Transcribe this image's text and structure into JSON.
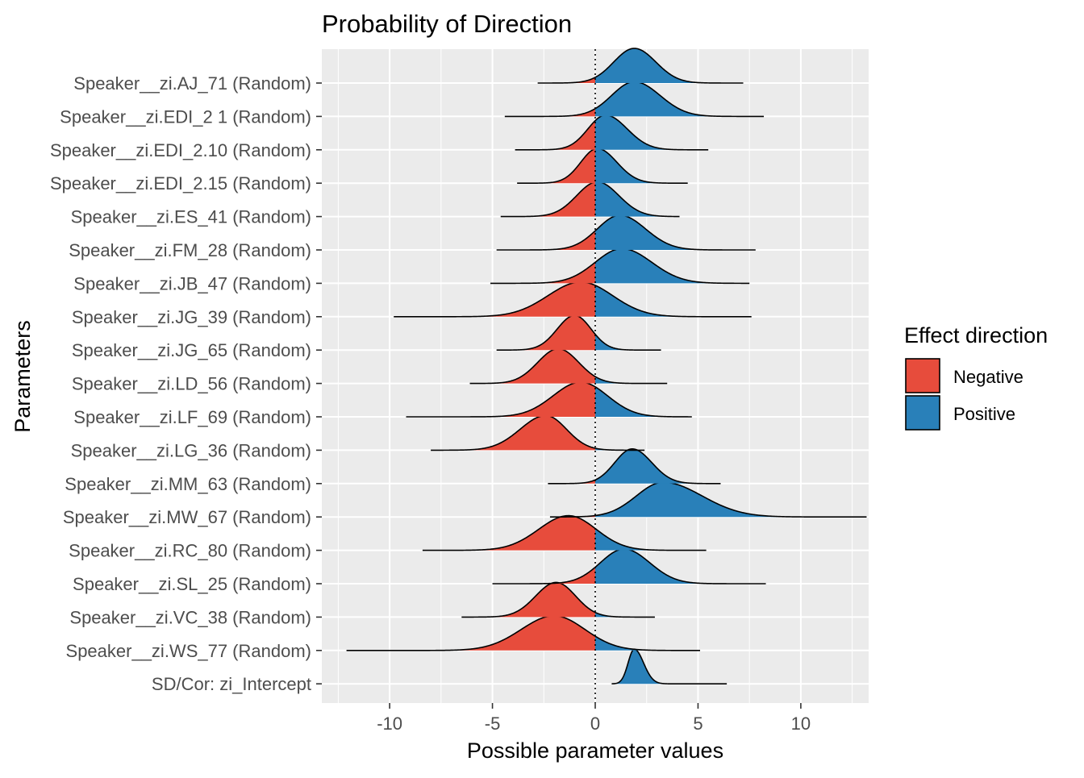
{
  "chart_data": {
    "type": "ridgeline",
    "title": "Probability of Direction",
    "xlabel": "Possible parameter values",
    "ylabel": "Parameters",
    "xlim": [
      -13.3,
      13.3
    ],
    "xticks": [
      -10,
      -5,
      0,
      5,
      10
    ],
    "xtick_labels": [
      "-10",
      "-5",
      "0",
      "5",
      "10"
    ],
    "reference_line_x": 0,
    "grid": true,
    "legend": {
      "title": "Effect direction",
      "position": "right",
      "entries": [
        {
          "label": "Negative",
          "color": "#E74C3C"
        },
        {
          "label": "Positive",
          "color": "#2980B9"
        }
      ]
    },
    "series": [
      {
        "name": "Speaker__zi.AJ_71 (Random)",
        "mode": 1.9,
        "sd_left": 1.0,
        "sd_right": 1.05,
        "min": -2.8,
        "max": 7.2
      },
      {
        "name": "Speaker__zi.EDI_2 1 (Random)",
        "mode": 1.9,
        "sd_left": 1.1,
        "sd_right": 1.25,
        "min": -4.4,
        "max": 8.2
      },
      {
        "name": "Speaker__zi.EDI_2.10 (Random)",
        "mode": 0.5,
        "sd_left": 0.85,
        "sd_right": 1.05,
        "min": -3.9,
        "max": 5.5
      },
      {
        "name": "Speaker__zi.EDI_2.15 (Random)",
        "mode": 0.1,
        "sd_left": 0.8,
        "sd_right": 0.95,
        "min": -3.8,
        "max": 4.5
      },
      {
        "name": "Speaker__zi.ES_41 (Random)",
        "mode": 0.1,
        "sd_left": 1.0,
        "sd_right": 1.05,
        "min": -4.6,
        "max": 4.1
      },
      {
        "name": "Speaker__zi.FM_28 (Random)",
        "mode": 1.2,
        "sd_left": 1.1,
        "sd_right": 1.25,
        "min": -4.8,
        "max": 7.8
      },
      {
        "name": "Speaker__zi.JB_47 (Random)",
        "mode": 1.3,
        "sd_left": 1.3,
        "sd_right": 1.45,
        "min": -5.1,
        "max": 7.5
      },
      {
        "name": "Speaker__zi.JG_39 (Random)",
        "mode": -0.7,
        "sd_left": 1.6,
        "sd_right": 1.55,
        "min": -9.8,
        "max": 7.6
      },
      {
        "name": "Speaker__zi.JG_65 (Random)",
        "mode": -1.0,
        "sd_left": 0.85,
        "sd_right": 0.8,
        "min": -4.8,
        "max": 3.2
      },
      {
        "name": "Speaker__zi.LD_56 (Random)",
        "mode": -1.8,
        "sd_left": 1.0,
        "sd_right": 1.0,
        "min": -6.1,
        "max": 3.5
      },
      {
        "name": "Speaker__zi.LF_69 (Random)",
        "mode": -0.7,
        "sd_left": 1.35,
        "sd_right": 1.3,
        "min": -9.2,
        "max": 4.7
      },
      {
        "name": "Speaker__zi.LG_36 (Random)",
        "mode": -2.4,
        "sd_left": 1.25,
        "sd_right": 1.0,
        "min": -8.0,
        "max": 2.4
      },
      {
        "name": "Speaker__zi.MM_63 (Random)",
        "mode": 1.8,
        "sd_left": 0.85,
        "sd_right": 0.95,
        "min": -2.3,
        "max": 6.1
      },
      {
        "name": "Speaker__zi.MW_67 (Random)",
        "mode": 3.3,
        "sd_left": 1.3,
        "sd_right": 1.9,
        "min": -2.2,
        "max": 13.2
      },
      {
        "name": "Speaker__zi.RC_80 (Random)",
        "mode": -1.3,
        "sd_left": 1.45,
        "sd_right": 1.35,
        "min": -8.4,
        "max": 5.4
      },
      {
        "name": "Speaker__zi.SL_25 (Random)",
        "mode": 1.4,
        "sd_left": 1.15,
        "sd_right": 1.25,
        "min": -5.0,
        "max": 8.3
      },
      {
        "name": "Speaker__zi.VC_38 (Random)",
        "mode": -1.9,
        "sd_left": 1.0,
        "sd_right": 0.95,
        "min": -6.5,
        "max": 2.9
      },
      {
        "name": "Speaker__zi.WS_77 (Random)",
        "mode": -2.0,
        "sd_left": 1.6,
        "sd_right": 1.5,
        "min": -12.1,
        "max": 5.1
      },
      {
        "name": "SD/Cor:  zi_Intercept",
        "mode": 1.9,
        "sd_left": 0.3,
        "sd_right": 0.45,
        "min": 0.8,
        "max": 6.4
      }
    ]
  }
}
